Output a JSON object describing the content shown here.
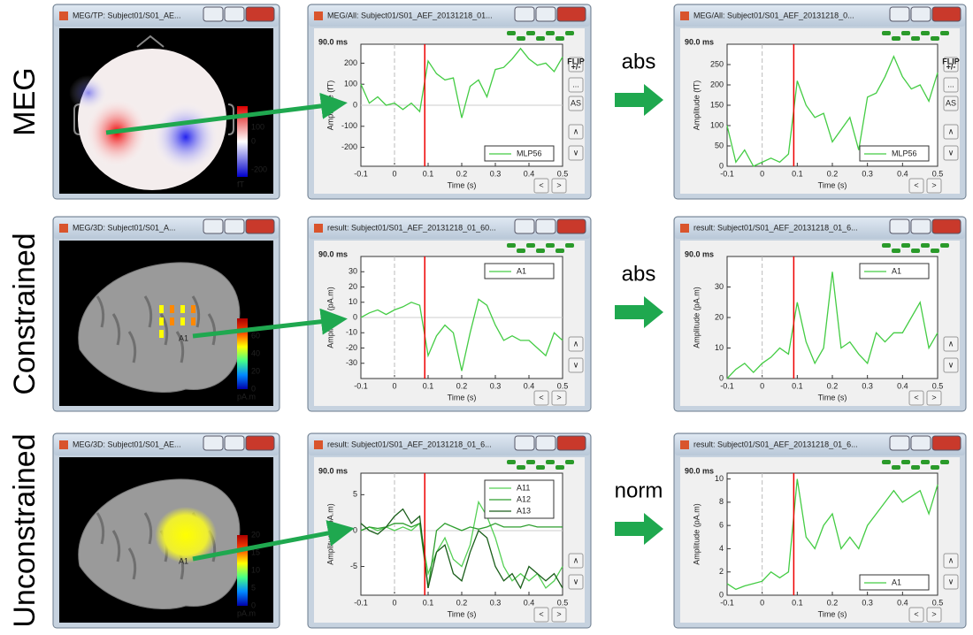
{
  "time_axis": {
    "label": "Time (s)",
    "lim": [
      -0.1,
      0.5
    ],
    "ticks": [
      -0.1,
      0,
      0.1,
      0.2,
      0.3,
      0.4,
      0.5
    ],
    "cursor": 0.09,
    "cursor_label": "90.0 ms",
    "event": 0,
    "values": [
      -0.1,
      -0.075,
      -0.05,
      -0.025,
      0,
      0.025,
      0.05,
      0.075,
      0.1,
      0.125,
      0.15,
      0.175,
      0.2,
      0.225,
      0.25,
      0.275,
      0.3,
      0.325,
      0.35,
      0.375,
      0.4,
      0.425,
      0.45,
      0.475,
      0.5
    ]
  },
  "buttons": {
    "flip": [
      "FLIP",
      "+/-"
    ],
    "more": "...",
    "autoscale": "AS",
    "up": "∧",
    "down": "∨",
    "prev": "<",
    "next": ">"
  },
  "rows": [
    {
      "label": "MEG",
      "operation": "abs",
      "source": {
        "title": "MEG/TP: Subject01/S01_AE...",
        "colorbar_lim": [
          -250,
          250
        ],
        "colorbar_ticks": [
          100,
          0,
          -200
        ],
        "colorbar_unit": "fT"
      },
      "signal": {
        "title": "MEG/All: Subject01/S01_AEF_20131218_01...",
        "ylabel": "Amplitude (fT)",
        "ylim": [
          -290,
          290
        ],
        "yticks": [
          200,
          100,
          0,
          -100,
          -200
        ],
        "legend": "lower right",
        "series": [
          {
            "name": "MLP56",
            "color": "#44cc44",
            "values": [
              100,
              10,
              40,
              0,
              10,
              -20,
              10,
              -30,
              210,
              150,
              120,
              130,
              -60,
              90,
              120,
              40,
              170,
              180,
              220,
              270,
              220,
              190,
              200,
              160,
              230
            ]
          }
        ]
      },
      "result": {
        "title": "MEG/All: Subject01/S01_AEF_20131218_0...",
        "ylabel": "Amplitude (fT)",
        "ylim": [
          0,
          300
        ],
        "yticks": [
          0,
          50,
          100,
          150,
          200,
          250
        ],
        "legend": "lower right",
        "series": [
          {
            "name": "MLP56",
            "color": "#44cc44",
            "values": [
              100,
              10,
              40,
              0,
              10,
              20,
              10,
              30,
              210,
              150,
              120,
              130,
              60,
              90,
              120,
              40,
              170,
              180,
              220,
              270,
              220,
              190,
              200,
              160,
              230
            ]
          }
        ]
      }
    },
    {
      "label": "Constrained",
      "operation": "abs",
      "source": {
        "title": "MEG/3D: Subject01/S01_A...",
        "scout": "A1",
        "colorbar_lim": [
          0,
          80
        ],
        "colorbar_ticks": [
          60,
          40,
          20,
          0
        ],
        "colorbar_unit": "pA.m"
      },
      "signal": {
        "title": "result: Subject01/S01_AEF_20131218_01_60...",
        "ylabel": "Amplitude (pA.m)",
        "ylim": [
          -40,
          40
        ],
        "yticks": [
          30,
          20,
          10,
          0,
          -10,
          -20,
          -30
        ],
        "legend": "upper right",
        "series": [
          {
            "name": "A1",
            "color": "#44cc44",
            "values": [
              0,
              3,
              5,
              2,
              5,
              7,
              10,
              8,
              -25,
              -12,
              -5,
              -10,
              -35,
              -10,
              12,
              8,
              -5,
              -15,
              -12,
              -15,
              -15,
              -20,
              -25,
              -10,
              -15
            ]
          }
        ]
      },
      "result": {
        "title": "result: Subject01/S01_AEF_20131218_01_6...",
        "ylabel": "Amplitude (pA.m)",
        "ylim": [
          0,
          40
        ],
        "yticks": [
          0,
          10,
          20,
          30
        ],
        "legend": "upper right",
        "series": [
          {
            "name": "A1",
            "color": "#44cc44",
            "values": [
              0,
              3,
              5,
              2,
              5,
              7,
              10,
              8,
              25,
              12,
              5,
              10,
              35,
              10,
              12,
              8,
              5,
              15,
              12,
              15,
              15,
              20,
              25,
              10,
              15
            ]
          }
        ]
      }
    },
    {
      "label": "Unconstrained",
      "operation": "norm",
      "source": {
        "title": "MEG/3D: Subject01/S01_AE...",
        "scout": "A1",
        "colorbar_lim": [
          0,
          20
        ],
        "colorbar_ticks": [
          20,
          15,
          10,
          5,
          0
        ],
        "colorbar_unit": "pA.m"
      },
      "signal": {
        "title": "result: Subject01/S01_AEF_20131218_01_6...",
        "ylabel": "Amplitude (pA.m)",
        "ylim": [
          -9,
          8
        ],
        "yticks": [
          5,
          0,
          -5
        ],
        "legend": "upper right",
        "series": [
          {
            "name": "A11",
            "color": "#55d055",
            "values": [
              0,
              0.5,
              0,
              0.5,
              0,
              0.5,
              0,
              1,
              -6,
              -3,
              -1,
              -4,
              -5,
              -2,
              4,
              2,
              -1,
              -5,
              -7,
              -6,
              -7,
              -6,
              -8,
              -7,
              -5
            ]
          },
          {
            "name": "A12",
            "color": "#2e9e2e",
            "values": [
              0,
              0.5,
              0.3,
              0.5,
              1,
              1,
              0.5,
              1,
              -8,
              0,
              1,
              0.5,
              0,
              0.5,
              0.2,
              0.5,
              1,
              0.5,
              0.5,
              0.5,
              0.8,
              0.5,
              0.5,
              0.5,
              0.5
            ]
          },
          {
            "name": "A13",
            "color": "#1a5e1a",
            "values": [
              1,
              0,
              -0.5,
              0.5,
              2,
              3,
              1,
              2,
              -8,
              -3,
              -2,
              -6,
              -7,
              -3,
              0,
              -1,
              -5,
              -7,
              -6,
              -8,
              -5,
              -6,
              -7,
              -6,
              -8
            ]
          }
        ]
      },
      "result": {
        "title": "result: Subject01/S01_AEF_20131218_01_6...",
        "ylabel": "Amplitude (pA.m)",
        "ylim": [
          0,
          10.5
        ],
        "yticks": [
          0,
          2,
          4,
          6,
          8,
          10
        ],
        "legend": "lower right",
        "series": [
          {
            "name": "A1",
            "color": "#44cc44",
            "values": [
              1,
              0.5,
              0.8,
              1,
              1.2,
              2,
              1.5,
              2,
              10,
              5,
              4,
              6,
              7,
              4,
              5,
              4,
              6,
              7,
              8,
              9,
              8,
              8.5,
              9,
              7,
              9.5
            ]
          }
        ]
      }
    }
  ]
}
